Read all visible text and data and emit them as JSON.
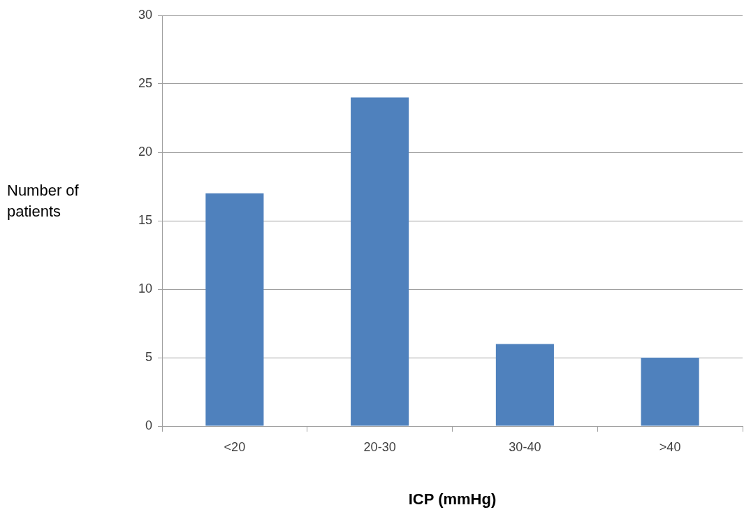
{
  "chart_data": {
    "type": "bar",
    "xlabel": "ICP (mmHg)",
    "ylabel": "Number of patients",
    "categories": [
      "<20",
      "20-30",
      "30-40",
      ">40"
    ],
    "values": [
      17,
      24,
      6,
      5
    ],
    "color": "#4f81bd",
    "ylim": [
      0,
      30
    ],
    "yticks": [
      0,
      5,
      10,
      15,
      20,
      25,
      30
    ],
    "grid": "y",
    "legend": false
  }
}
